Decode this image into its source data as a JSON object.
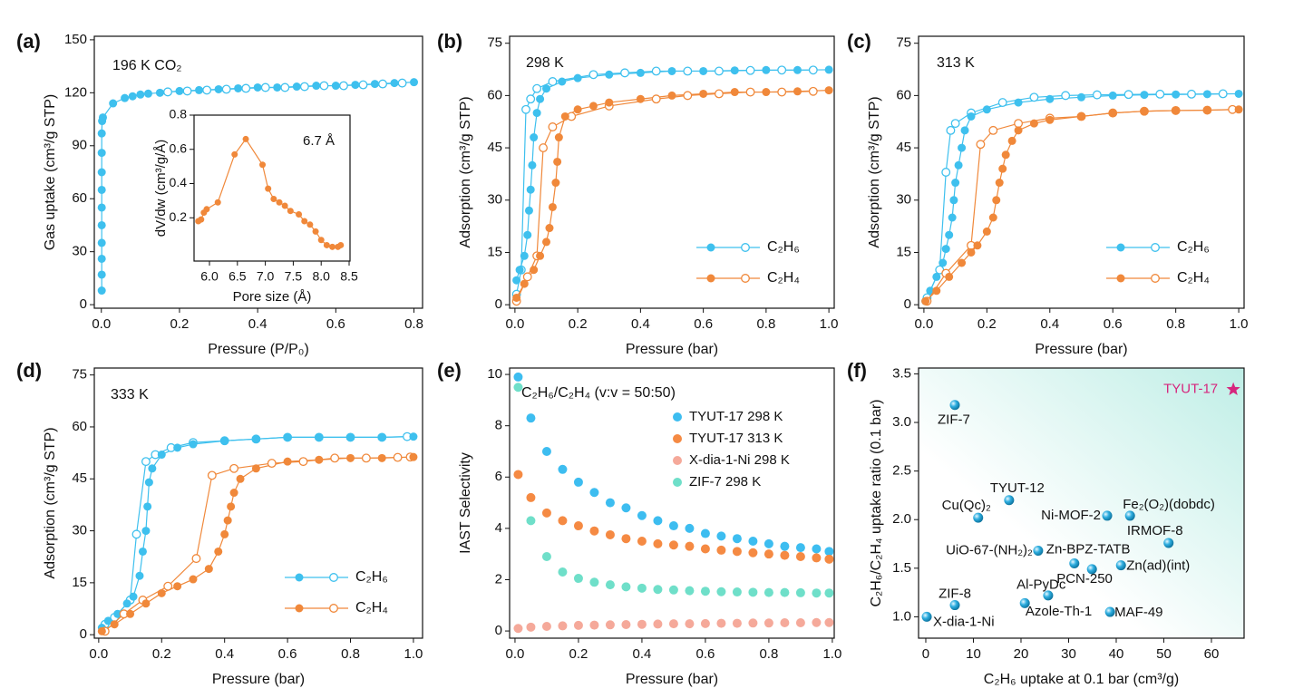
{
  "chart_data": [
    {
      "type": "line",
      "panel_label": "(a)",
      "annotation": "196 K CO₂",
      "x_label": "Pressure (P/P₀)",
      "y_label": "Gas uptake (cm³/g STP)",
      "xlim": [
        -0.018,
        0.822
      ],
      "ylim": [
        -2,
        152
      ],
      "xticks": [
        {
          "value": 0,
          "label": "0.0"
        },
        0.2,
        0.4,
        0.6,
        0.8
      ],
      "yticks": [
        0,
        30,
        60,
        90,
        120,
        150
      ],
      "series": [
        {
          "color": "#3ec0ee",
          "x": [
            0.001,
            0.001,
            0.001,
            0.001,
            0.001,
            0.001,
            0.001,
            0.001,
            0.001,
            0.001,
            0.002,
            0.004,
            0.03,
            0.06,
            0.08,
            0.1,
            0.12,
            0.15,
            0.2,
            0.25,
            0.3,
            0.35,
            0.4,
            0.45,
            0.5,
            0.55,
            0.6,
            0.65,
            0.7,
            0.75,
            0.8
          ],
          "values": [
            8,
            17,
            26,
            35,
            45,
            55,
            65,
            75,
            86,
            97,
            104,
            106,
            114,
            117,
            118,
            119,
            119.5,
            120,
            121,
            121.5,
            122,
            122.5,
            123,
            123,
            123.5,
            124,
            124,
            124.5,
            125,
            125.5,
            126
          ],
          "desorption_x": [
            0.17,
            0.22,
            0.27,
            0.32,
            0.37,
            0.42,
            0.47,
            0.52,
            0.57,
            0.62,
            0.67,
            0.72,
            0.77
          ],
          "desorption_values": [
            120.5,
            121,
            121.5,
            122,
            122.5,
            123,
            123,
            123.5,
            124,
            124,
            124.5,
            125,
            125.5
          ]
        }
      ],
      "inset": {
        "type": "line",
        "x_label": "Pore size (Å)",
        "y_label": "dV/dw (cm³/g/Å)",
        "annotation": "6.7 Å",
        "color": "#f0883a",
        "xlim": [
          5.724,
          8.516
        ],
        "ylim": [
          -0.053,
          0.8
        ],
        "xticks": [
          {
            "value": 6,
            "label": "6.0"
          },
          6.5,
          {
            "value": 7,
            "label": "7.0"
          },
          7.5,
          {
            "value": 8,
            "label": "8.0"
          },
          8.5
        ],
        "yticks": [
          0.2,
          0.4,
          0.6,
          0.8
        ],
        "x": [
          5.8,
          5.85,
          5.9,
          5.95,
          6.15,
          6.45,
          6.65,
          6.95,
          7.05,
          7.15,
          7.25,
          7.35,
          7.45,
          7.6,
          7.7,
          7.8,
          7.9,
          8.0,
          8.1,
          8.2,
          8.3,
          8.35
        ],
        "values": [
          0.18,
          0.19,
          0.23,
          0.25,
          0.29,
          0.57,
          0.66,
          0.51,
          0.37,
          0.31,
          0.29,
          0.27,
          0.24,
          0.22,
          0.18,
          0.16,
          0.12,
          0.07,
          0.04,
          0.03,
          0.03,
          0.04
        ]
      }
    },
    {
      "type": "line",
      "panel_label": "(b)",
      "annotation": "298 K",
      "x_label": "Pressure (bar)",
      "y_label": "Adsorption (cm³/g STP)",
      "xlim": [
        -0.017,
        1.017
      ],
      "ylim": [
        -1,
        77
      ],
      "legend": "lower right",
      "xticks": [
        {
          "value": 0,
          "label": "0.0"
        },
        0.2,
        0.4,
        0.6,
        0.8,
        {
          "value": 1,
          "label": "1.0"
        }
      ],
      "yticks": [
        0,
        15,
        30,
        45,
        60,
        75
      ],
      "series": [
        {
          "name": "C₂H₆",
          "color": "#3ec0ee",
          "x": [
            0.005,
            0.015,
            0.03,
            0.04,
            0.045,
            0.05,
            0.055,
            0.06,
            0.07,
            0.08,
            0.1,
            0.15,
            0.2,
            0.3,
            0.4,
            0.5,
            0.6,
            0.7,
            0.8,
            0.9,
            1.0
          ],
          "values": [
            7,
            10,
            14,
            20,
            27,
            33,
            40,
            48,
            55,
            59,
            62,
            64,
            65,
            66,
            66.5,
            67,
            67,
            67.2,
            67.3,
            67.3,
            67.4
          ],
          "desorption_x": [
            0.005,
            0.02,
            0.035,
            0.05,
            0.07,
            0.12,
            0.25,
            0.35,
            0.45,
            0.55,
            0.65,
            0.75,
            0.85,
            0.95
          ],
          "desorption_values": [
            3,
            10,
            56,
            59,
            62,
            64,
            66,
            66.5,
            67,
            67,
            67,
            67.2,
            67.3,
            67.3
          ]
        },
        {
          "name": "C₂H₄",
          "color": "#f0883a",
          "x": [
            0.005,
            0.03,
            0.06,
            0.08,
            0.1,
            0.11,
            0.12,
            0.13,
            0.135,
            0.14,
            0.16,
            0.2,
            0.25,
            0.3,
            0.4,
            0.5,
            0.6,
            0.7,
            0.8,
            0.9,
            1.0
          ],
          "values": [
            2,
            6,
            10,
            14,
            18,
            22,
            28,
            35,
            41,
            48,
            54,
            56,
            57,
            58,
            59,
            60,
            60.5,
            61,
            61,
            61.2,
            61.5
          ],
          "desorption_x": [
            0.005,
            0.04,
            0.07,
            0.09,
            0.12,
            0.18,
            0.3,
            0.45,
            0.55,
            0.65,
            0.75,
            0.85,
            0.95
          ],
          "desorption_values": [
            1,
            8,
            14,
            45,
            51,
            54,
            57,
            59,
            60,
            60.5,
            61,
            61,
            61.2
          ]
        }
      ]
    },
    {
      "type": "line",
      "panel_label": "(c)",
      "annotation": "313 K",
      "x_label": "Pressure (bar)",
      "y_label": "Adsorption (cm³/g STP)",
      "xlim": [
        -0.017,
        1.017
      ],
      "ylim": [
        -1,
        77
      ],
      "legend": "lower right",
      "xticks": [
        {
          "value": 0,
          "label": "0.0"
        },
        0.2,
        0.4,
        0.6,
        0.8,
        {
          "value": 1,
          "label": "1.0"
        }
      ],
      "yticks": [
        0,
        15,
        30,
        45,
        60,
        75
      ],
      "series": [
        {
          "name": "C₂H₆",
          "color": "#3ec0ee",
          "x": [
            0.005,
            0.02,
            0.04,
            0.06,
            0.07,
            0.08,
            0.09,
            0.095,
            0.1,
            0.11,
            0.12,
            0.13,
            0.15,
            0.2,
            0.3,
            0.4,
            0.5,
            0.6,
            0.7,
            0.8,
            0.9,
            1.0
          ],
          "values": [
            1,
            4,
            8,
            12,
            16,
            20,
            25,
            30,
            35,
            40,
            45,
            50,
            54,
            56,
            58,
            59,
            59.5,
            60,
            60.2,
            60.3,
            60.4,
            60.5
          ],
          "desorption_x": [
            0.01,
            0.05,
            0.07,
            0.085,
            0.1,
            0.15,
            0.25,
            0.35,
            0.45,
            0.55,
            0.65,
            0.75,
            0.85,
            0.95
          ],
          "desorption_values": [
            2,
            10,
            38,
            50,
            52,
            55,
            58,
            59.5,
            60,
            60.2,
            60.3,
            60.4,
            60.4,
            60.5
          ]
        },
        {
          "name": "C₂H₄",
          "color": "#f0883a",
          "x": [
            0.005,
            0.04,
            0.08,
            0.12,
            0.15,
            0.17,
            0.2,
            0.22,
            0.23,
            0.24,
            0.25,
            0.26,
            0.28,
            0.3,
            0.35,
            0.4,
            0.5,
            0.6,
            0.7,
            0.8,
            0.9,
            1.0
          ],
          "values": [
            1,
            4,
            8,
            12,
            15,
            17,
            21,
            25,
            30,
            35,
            39,
            43,
            47,
            50,
            52,
            53,
            54,
            55,
            55.5,
            55.7,
            55.8,
            56
          ],
          "desorption_x": [
            0.01,
            0.07,
            0.15,
            0.18,
            0.22,
            0.3,
            0.4,
            0.5,
            0.6,
            0.7,
            0.8,
            0.9,
            0.98
          ],
          "desorption_values": [
            1,
            9,
            17,
            46,
            50,
            52,
            53.5,
            54,
            55,
            55.5,
            55.7,
            55.8,
            56
          ]
        }
      ]
    },
    {
      "type": "line",
      "panel_label": "(d)",
      "annotation": "333 K",
      "x_label": "Pressure (bar)",
      "y_label": "Adsorption (cm³/g STP)",
      "xlim": [
        -0.014,
        1.029
      ],
      "ylim": [
        -1,
        77
      ],
      "legend": "lower right",
      "xticks": [
        {
          "value": 0,
          "label": "0.0"
        },
        0.2,
        0.4,
        0.6,
        0.8,
        {
          "value": 1,
          "label": "1.0"
        }
      ],
      "yticks": [
        0,
        15,
        30,
        45,
        60,
        75
      ],
      "series": [
        {
          "name": "C₂H₆",
          "color": "#3ec0ee",
          "x": [
            0.01,
            0.03,
            0.06,
            0.09,
            0.11,
            0.13,
            0.14,
            0.15,
            0.155,
            0.16,
            0.17,
            0.2,
            0.25,
            0.3,
            0.4,
            0.5,
            0.6,
            0.7,
            0.8,
            0.9,
            1.0
          ],
          "values": [
            2,
            4,
            6,
            9,
            11,
            17,
            24,
            30,
            37,
            44,
            48,
            52,
            54,
            55,
            56,
            56.5,
            57,
            57,
            57,
            57,
            57.2
          ],
          "desorption_x": [
            0.02,
            0.05,
            0.1,
            0.12,
            0.15,
            0.18,
            0.23,
            0.3,
            0.4,
            0.5,
            0.6,
            0.7,
            0.8,
            0.9,
            0.98
          ],
          "desorption_values": [
            3,
            5,
            10,
            29,
            50,
            52,
            54,
            55.5,
            56,
            56.5,
            57,
            57,
            57,
            57,
            57.2
          ]
        },
        {
          "name": "C₂H₄",
          "color": "#f0883a",
          "x": [
            0.01,
            0.05,
            0.1,
            0.15,
            0.2,
            0.25,
            0.3,
            0.35,
            0.38,
            0.4,
            0.41,
            0.42,
            0.43,
            0.45,
            0.5,
            0.6,
            0.7,
            0.8,
            0.9,
            1.0
          ],
          "values": [
            1,
            3,
            6,
            9,
            12,
            14,
            16,
            19,
            24,
            29,
            33,
            37,
            41,
            45,
            48,
            50,
            50.5,
            51,
            51,
            51.3
          ],
          "desorption_x": [
            0.02,
            0.08,
            0.14,
            0.22,
            0.31,
            0.36,
            0.43,
            0.55,
            0.65,
            0.75,
            0.85,
            0.95,
            0.99
          ],
          "desorption_values": [
            1,
            6,
            10,
            14,
            22,
            46,
            48,
            49.5,
            50,
            51,
            51,
            51.2,
            51.3
          ]
        }
      ]
    },
    {
      "type": "scatter",
      "panel_label": "(e)",
      "annotation": "C₂H₆/C₂H₄ (v:v = 50:50)",
      "x_label": "Pressure (bar)",
      "y_label": "IAST Selectivity",
      "xlim": [
        -0.017,
        1.006
      ],
      "ylim": [
        -0.28,
        10.25
      ],
      "legend": "upper right",
      "xticks": [
        {
          "value": 0,
          "label": "0.0"
        },
        0.2,
        0.4,
        0.6,
        0.8,
        {
          "value": 1,
          "label": "1.0"
        }
      ],
      "yticks": [
        0,
        2,
        4,
        6,
        8,
        10
      ],
      "x": [
        0.01,
        0.05,
        0.1,
        0.15,
        0.2,
        0.25,
        0.3,
        0.35,
        0.4,
        0.45,
        0.5,
        0.55,
        0.6,
        0.65,
        0.7,
        0.75,
        0.8,
        0.85,
        0.9,
        0.95,
        0.99
      ],
      "series": [
        {
          "name": "TYUT-17 298 K",
          "color": "#3dbdf0",
          "values": [
            9.9,
            8.3,
            7.0,
            6.3,
            5.8,
            5.4,
            5.0,
            4.8,
            4.5,
            4.3,
            4.1,
            4.0,
            3.8,
            3.7,
            3.6,
            3.5,
            3.4,
            3.3,
            3.25,
            3.2,
            3.1
          ]
        },
        {
          "name": "TYUT-17 313 K",
          "color": "#f58a43",
          "values": [
            6.1,
            5.2,
            4.6,
            4.3,
            4.1,
            3.9,
            3.75,
            3.6,
            3.5,
            3.4,
            3.35,
            3.3,
            3.2,
            3.15,
            3.1,
            3.05,
            3.0,
            2.95,
            2.9,
            2.85,
            2.8
          ]
        },
        {
          "name": "X-dia-1-Ni 298 K",
          "color": "#f5a99a",
          "values": [
            0.1,
            0.15,
            0.18,
            0.2,
            0.22,
            0.23,
            0.24,
            0.25,
            0.26,
            0.27,
            0.28,
            0.28,
            0.29,
            0.3,
            0.3,
            0.31,
            0.31,
            0.32,
            0.32,
            0.33,
            0.33
          ]
        },
        {
          "name": "ZIF-7 298 K",
          "color": "#6fdfc9",
          "values": [
            9.5,
            4.3,
            2.9,
            2.3,
            2.05,
            1.9,
            1.8,
            1.72,
            1.67,
            1.62,
            1.6,
            1.57,
            1.55,
            1.53,
            1.52,
            1.51,
            1.5,
            1.5,
            1.49,
            1.48,
            1.48
          ]
        }
      ]
    },
    {
      "type": "scatter",
      "panel_label": "(f)",
      "x_label": "C₂H₆ uptake at 0.1 bar (cm³/g)",
      "y_label": "C₂H₆/C₂H₄ uptake ratio (0.1 bar)",
      "xlim": [
        -1.52,
        66.86
      ],
      "ylim": [
        0.78,
        3.56
      ],
      "color": "#1a9fd0",
      "xticks": [
        0,
        10,
        20,
        30,
        40,
        50,
        60
      ],
      "yticks": [
        {
          "value": 1,
          "label": "1.0"
        },
        1.5,
        {
          "value": 2,
          "label": "2.0"
        },
        2.5,
        {
          "value": 3,
          "label": "3.0"
        },
        3.5
      ],
      "labels": [
        "ZIF-7",
        "TYUT-12",
        "Cu(Qc)₂",
        "Ni-MOF-2",
        "Fe₂(O₂)(dobdc)",
        "IRMOF-8",
        "UiO-67-(NH₂)₂",
        "Zn-BPZ-TATB",
        "PCN-250",
        "Zn(ad)(int)",
        "Al-PyDc",
        "Azole-Th-1",
        "MAF-49",
        "ZIF-8",
        "X-dia-1-Ni"
      ],
      "x": [
        6.1,
        17.5,
        11.0,
        38.1,
        42.9,
        51.0,
        23.6,
        31.2,
        34.9,
        41.0,
        20.8,
        25.7,
        38.7,
        6.1,
        0.2
      ],
      "values": [
        3.18,
        2.2,
        2.02,
        2.04,
        2.04,
        1.76,
        1.68,
        1.55,
        1.49,
        1.53,
        1.14,
        1.22,
        1.05,
        1.12,
        1.0
      ],
      "highlight": {
        "label": "TYUT-17",
        "x": 64.6,
        "value": 3.34,
        "color": "#d6267d"
      }
    }
  ]
}
